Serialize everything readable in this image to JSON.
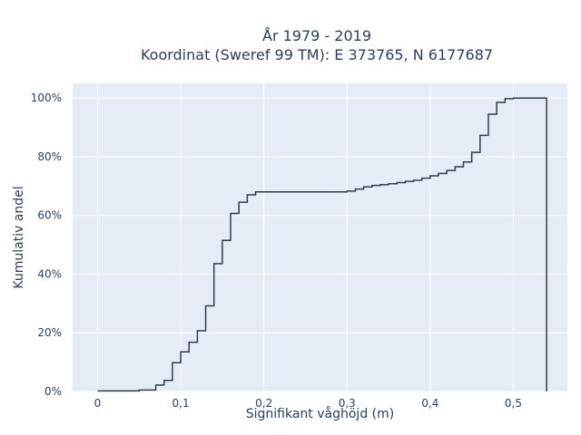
{
  "chart_data": {
    "type": "line",
    "title_lines": [
      "År 1979 - 2019",
      "Koordinat (Sweref 99 TM): E 373765, N 6177687"
    ],
    "xlabel": "Signifikant våghöjd (m)",
    "ylabel": "Kumulativ andel",
    "xlim": [
      -0.03,
      0.565
    ],
    "ylim": [
      0,
      1.05
    ],
    "xticks": [
      0,
      0.1,
      0.2,
      0.3,
      0.4,
      0.5
    ],
    "xtick_labels": [
      "0",
      "0,1",
      "0,2",
      "0,3",
      "0,4",
      "0,5"
    ],
    "yticks": [
      0,
      0.2,
      0.4,
      0.6,
      0.8,
      1.0
    ],
    "ytick_labels": [
      "0%",
      "20%",
      "40%",
      "60%",
      "80%",
      "100%"
    ],
    "grid": true,
    "legend": null,
    "background": "#e5ecf6",
    "line_color": "#2f3e4f",
    "series": [
      {
        "step": "post",
        "x": [
          0,
          0.05,
          0.07,
          0.08,
          0.09,
          0.1,
          0.11,
          0.12,
          0.13,
          0.14,
          0.15,
          0.16,
          0.17,
          0.18,
          0.19,
          0.3,
          0.31,
          0.32,
          0.33,
          0.34,
          0.35,
          0.36,
          0.37,
          0.38,
          0.39,
          0.4,
          0.41,
          0.42,
          0.43,
          0.44,
          0.45,
          0.46,
          0.47,
          0.48,
          0.49,
          0.5,
          0.54,
          0.54
        ],
        "y": [
          0.002,
          0.005,
          0.022,
          0.038,
          0.098,
          0.135,
          0.168,
          0.207,
          0.292,
          0.436,
          0.515,
          0.607,
          0.645,
          0.67,
          0.68,
          0.683,
          0.69,
          0.697,
          0.702,
          0.705,
          0.708,
          0.712,
          0.716,
          0.72,
          0.727,
          0.735,
          0.743,
          0.753,
          0.766,
          0.782,
          0.815,
          0.873,
          0.945,
          0.985,
          0.998,
          1.0,
          1.0,
          0
        ]
      }
    ]
  }
}
